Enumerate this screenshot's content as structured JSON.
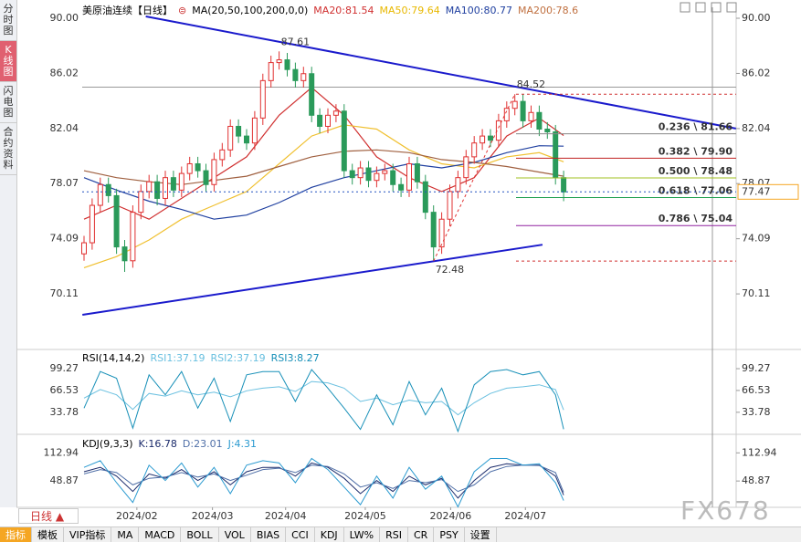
{
  "header": {
    "title": "美原油连续【日线】",
    "ma_params": "MA(20,50,100,200,0,0)",
    "ma_labels": [
      "MA20:81.54",
      "MA50:79.64",
      "MA100:80.77",
      "MA200:78.6"
    ]
  },
  "sidebar_tabs": [
    "分时图",
    "K线图",
    "闪电图",
    "合约资料"
  ],
  "period": "日线",
  "watermark": "FX678",
  "toolbar": [
    "指标",
    "模板",
    "VIP指标",
    "MA",
    "MACD",
    "BOLL",
    "VOL",
    "BIAS",
    "CCI",
    "KDJ",
    "LW%",
    "RSI",
    "CR",
    "PSY",
    "设置"
  ],
  "chart_data": [
    {
      "type": "candlestick",
      "up_color": "#e03030",
      "down_color": "#2a9a5a",
      "ylim": [
        66.1,
        90.79
      ],
      "yticks": [
        {
          "value": 90,
          "label": "90.00"
        },
        86.02,
        82.04,
        78.07,
        74.09,
        70.11
      ],
      "xticks": [
        {
          "value": 6.5,
          "label": "2024/02"
        },
        {
          "value": 15.8,
          "label": "2024/03"
        },
        {
          "value": 24.8,
          "label": "2024/04"
        },
        {
          "value": 34.6,
          "label": "2024/05"
        },
        {
          "value": 45.1,
          "label": "2024/06"
        },
        {
          "value": 54.3,
          "label": "2024/07"
        }
      ],
      "open": [
        73.0,
        73.8,
        76.5,
        78.0,
        77.2,
        73.5,
        72.5,
        76.0,
        77.5,
        78.2,
        77.0,
        78.5,
        77.6,
        78.8,
        79.5,
        79.0,
        78.0,
        79.8,
        80.5,
        82.2,
        81.5,
        81.0,
        82.8,
        85.5,
        86.8,
        87.0,
        86.3,
        85.5,
        86.0,
        83.0,
        82.2,
        83.0,
        83.3,
        79.0,
        78.5,
        79.2,
        78.3,
        78.8,
        79.0,
        78.0,
        77.6,
        79.5,
        78.2,
        76.0,
        73.5,
        75.5,
        77.5,
        78.5,
        80.0,
        81.0,
        81.5,
        81.2,
        82.6,
        83.5,
        84.0,
        82.6,
        83.2,
        82.0,
        81.8,
        78.5
      ],
      "high": [
        74.3,
        77.0,
        78.5,
        78.5,
        77.7,
        74.0,
        76.5,
        78.0,
        78.7,
        78.7,
        79.0,
        79.0,
        79.3,
        80.0,
        80.0,
        79.5,
        80.3,
        81.0,
        82.7,
        82.7,
        82.0,
        83.3,
        86.0,
        87.3,
        87.61,
        87.5,
        86.8,
        86.5,
        86.5,
        83.5,
        83.5,
        83.8,
        83.8,
        79.5,
        79.7,
        79.7,
        79.3,
        79.5,
        79.5,
        78.5,
        80.0,
        80.0,
        78.7,
        76.5,
        76.0,
        78.0,
        79.0,
        80.5,
        81.5,
        82.0,
        82.0,
        83.1,
        84.0,
        84.52,
        84.5,
        83.7,
        83.7,
        82.5,
        82.3,
        79.0
      ],
      "low": [
        72.5,
        73.3,
        76.0,
        76.7,
        73.0,
        71.7,
        72.0,
        75.5,
        77.0,
        76.5,
        76.5,
        77.1,
        77.1,
        78.3,
        78.5,
        77.5,
        77.5,
        79.3,
        80.0,
        81.0,
        80.5,
        80.5,
        82.3,
        85.0,
        86.3,
        85.8,
        85.0,
        85.0,
        82.5,
        81.7,
        81.7,
        82.5,
        78.5,
        78.0,
        78.0,
        77.8,
        77.8,
        78.3,
        77.5,
        77.1,
        77.1,
        77.7,
        75.5,
        72.48,
        73.0,
        75.0,
        77.0,
        78.0,
        79.5,
        80.5,
        80.7,
        80.7,
        82.1,
        83.0,
        82.1,
        82.1,
        81.5,
        81.3,
        78.0,
        76.8
      ],
      "close": [
        73.8,
        76.5,
        78.0,
        77.2,
        73.5,
        72.5,
        76.0,
        77.5,
        78.2,
        77.0,
        78.5,
        77.6,
        78.8,
        79.5,
        79.0,
        78.0,
        79.8,
        80.5,
        82.2,
        81.5,
        81.0,
        82.8,
        85.5,
        86.8,
        87.0,
        86.3,
        85.5,
        86.0,
        83.0,
        82.2,
        83.0,
        83.3,
        79.0,
        78.5,
        79.2,
        78.3,
        78.8,
        79.0,
        78.0,
        77.6,
        79.5,
        78.2,
        76.0,
        73.5,
        75.5,
        77.5,
        78.5,
        80.0,
        81.0,
        81.5,
        81.2,
        82.6,
        83.5,
        84.0,
        82.6,
        83.2,
        82.0,
        81.8,
        78.5,
        77.47
      ],
      "ma_x": [
        0,
        4,
        8,
        12,
        16,
        20,
        24,
        28,
        32,
        36,
        40,
        44,
        48,
        52,
        56,
        59
      ],
      "series": [
        {
          "name": "MA20",
          "color": "#d03030",
          "values": [
            75.5,
            76.5,
            75.5,
            77,
            78.5,
            80,
            83,
            85,
            83,
            80,
            78.5,
            77.5,
            78.5,
            81.5,
            82.8,
            81.54
          ]
        },
        {
          "name": "MA50",
          "color": "#f0c030",
          "values": [
            72.0,
            72.8,
            74.0,
            75.5,
            76.5,
            77.5,
            79.5,
            81.5,
            82.3,
            82.0,
            80.5,
            79.5,
            79.2,
            80.0,
            80.3,
            79.64
          ]
        },
        {
          "name": "MA100",
          "color": "#2040a0",
          "values": [
            78.5,
            77.6,
            76.8,
            76.2,
            75.5,
            75.8,
            76.7,
            77.8,
            78.5,
            79.0,
            79.5,
            79.2,
            79.6,
            80.3,
            80.8,
            80.77
          ]
        },
        {
          "name": "MA200",
          "color": "#a06040",
          "values": [
            79.0,
            78.5,
            78.2,
            78.0,
            78.3,
            78.6,
            79.3,
            80.0,
            80.4,
            80.5,
            80.3,
            79.8,
            79.6,
            79.3,
            78.9,
            78.6
          ]
        }
      ],
      "trendlines": [
        {
          "x": [
            7.6,
            80.2
          ],
          "y": [
            90.13,
            82.04
          ],
          "color": "#1a1acc"
        },
        {
          "x": [
            -0.2,
            56.4
          ],
          "y": [
            68.6,
            73.66
          ],
          "color": "#1a1acc"
        },
        {
          "x": [
            43,
            53
          ],
          "y": [
            72.48,
            84.52
          ],
          "color": "#e03030",
          "dash": true
        }
      ],
      "fib_levels": [
        {
          "value": 81.66,
          "label": "0.236 \\ 81.66",
          "color": "#888888"
        },
        {
          "value": 79.9,
          "label": "0.382 \\ 79.90",
          "color": "#c02020"
        },
        {
          "value": 78.48,
          "label": "0.500 \\ 78.48",
          "color": "#a0c020"
        },
        {
          "value": 77.06,
          "label": "0.618 \\ 77.06",
          "color": "#20a050"
        },
        {
          "value": 75.04,
          "label": "0.786 \\ 75.04",
          "color": "#9020a0"
        }
      ],
      "dashed_levels": [
        {
          "value": 84.52,
          "color": "#d03030"
        },
        {
          "value": 72.48,
          "color": "#d03030"
        }
      ],
      "ref_level": {
        "value": 85.03,
        "color": "#999999"
      },
      "last_price": {
        "value": 77.47,
        "label": "77.47",
        "color": "#2050c0"
      },
      "annotations": [
        {
          "label": "87.61",
          "value": 87.61,
          "x": 24,
          "color": "#c03030"
        },
        {
          "label": "84.52",
          "value": 84.52,
          "x": 53,
          "color": "#e06070"
        },
        {
          "label": "72.48",
          "value": 72.48,
          "x": 43,
          "color": "#30a070",
          "below": true
        }
      ]
    },
    {
      "type": "line",
      "title": "RSI(14,14,2)",
      "legend_labels": [
        "RSI1:37.19",
        "RSI2:37.19",
        "RSI3:8.27"
      ],
      "ylim": [
        2,
        124
      ],
      "yticks": [
        99.27,
        66.53,
        33.78
      ],
      "x": [
        0,
        2,
        4,
        6,
        8,
        10,
        12,
        14,
        16,
        18,
        20,
        22,
        24,
        26,
        28,
        30,
        32,
        34,
        36,
        38,
        40,
        42,
        44,
        46,
        48,
        50,
        52,
        54,
        56,
        58,
        59
      ],
      "series": [
        {
          "name": "RSI1",
          "color": "#6ac0e0",
          "values": [
            55,
            68,
            60,
            38,
            62,
            58,
            66,
            60,
            64,
            57,
            66,
            70,
            72,
            65,
            80,
            78,
            70,
            50,
            55,
            45,
            52,
            48,
            50,
            30,
            48,
            62,
            70,
            72,
            75,
            68,
            37.19
          ]
        },
        {
          "name": "RSI3",
          "color": "#1890b8",
          "values": [
            40,
            95,
            85,
            10,
            90,
            60,
            95,
            40,
            85,
            20,
            90,
            95,
            95,
            50,
            98,
            70,
            40,
            8,
            60,
            15,
            80,
            30,
            70,
            5,
            75,
            95,
            98,
            90,
            95,
            60,
            8.27
          ]
        }
      ]
    },
    {
      "type": "line",
      "title": "KDJ(9,3,3)",
      "legend_labels": [
        "K:16.78",
        "D:23.01",
        "J:4.31"
      ],
      "ylim": [
        -9,
        151
      ],
      "yticks": [
        112.94,
        48.87
      ],
      "x": [
        0,
        2,
        4,
        6,
        8,
        10,
        12,
        14,
        16,
        18,
        20,
        22,
        24,
        26,
        28,
        30,
        32,
        34,
        36,
        38,
        40,
        42,
        44,
        46,
        48,
        50,
        52,
        54,
        56,
        58,
        59
      ],
      "series": [
        {
          "name": "K",
          "color": "#1a2a6a",
          "values": [
            70,
            80,
            60,
            25,
            65,
            55,
            75,
            50,
            70,
            40,
            70,
            80,
            80,
            60,
            90,
            80,
            55,
            20,
            50,
            25,
            60,
            40,
            55,
            10,
            50,
            80,
            88,
            85,
            85,
            60,
            16.78
          ]
        },
        {
          "name": "D",
          "color": "#5070a8",
          "values": [
            65,
            75,
            68,
            40,
            55,
            58,
            68,
            58,
            65,
            50,
            62,
            75,
            78,
            68,
            85,
            82,
            65,
            35,
            45,
            32,
            50,
            45,
            52,
            25,
            40,
            70,
            82,
            85,
            84,
            68,
            23.01
          ]
        },
        {
          "name": "J",
          "color": "#2a9ad0",
          "values": [
            80,
            95,
            45,
            0,
            85,
            50,
            90,
            35,
            80,
            20,
            85,
            95,
            90,
            45,
            100,
            75,
            35,
            -5,
            60,
            10,
            80,
            30,
            60,
            -10,
            70,
            100,
            100,
            85,
            88,
            45,
            4.31
          ]
        }
      ]
    }
  ]
}
